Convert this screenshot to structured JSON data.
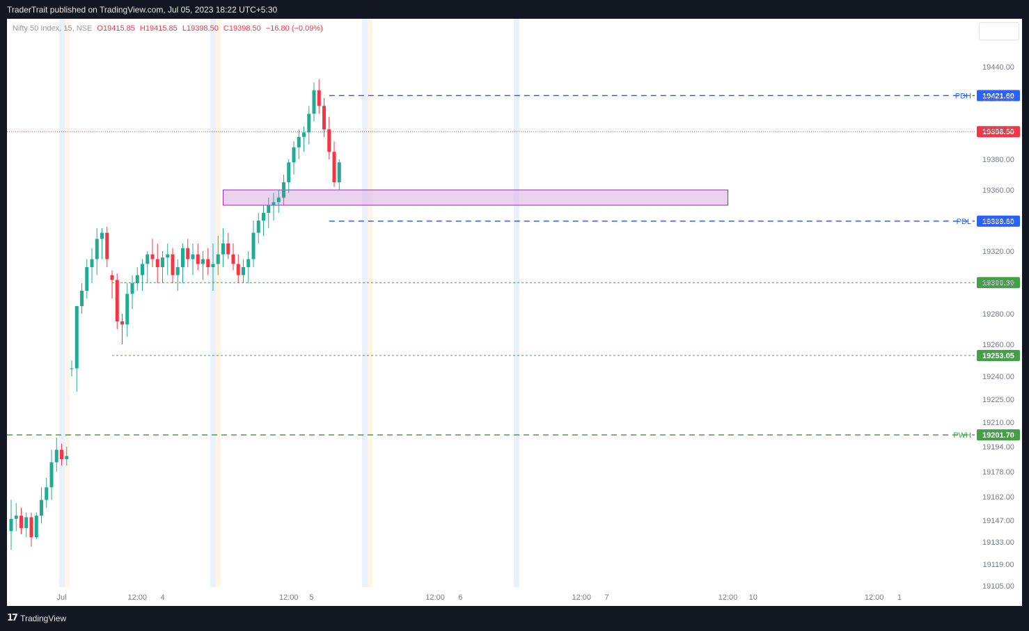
{
  "header": {
    "published": "TraderTrait published on TradingView.com, Jul 05, 2023 18:22 UTC+5:30"
  },
  "legend": {
    "symbol": "Nifty 50 Index, 15, NSE",
    "open_label": "O",
    "open": "19415.85",
    "high_label": "H",
    "high": "19415.85",
    "low_label": "L",
    "low": "19398.50",
    "close_label": "C",
    "close": "19398.50",
    "change": "−16.80 (−0.09%)"
  },
  "footer": {
    "brand": "TradingView"
  },
  "colors": {
    "up": "#22ab94",
    "down": "#f23645",
    "pdh_pdl": "#2962ff",
    "levels": "#43a047",
    "zone_fill": "#e1bee7",
    "zone_border": "#9c27b0",
    "last_price": "#f23645"
  },
  "chart_data": {
    "type": "candlestick",
    "timeframe": "15",
    "y_axis_ticks": [
      "19440.00",
      "19420.00",
      "19400.00",
      "19380.00",
      "19360.00",
      "19340.00",
      "19320.00",
      "19300.00",
      "19280.00",
      "19260.00",
      "19240.00",
      "19225.00",
      "19210.00",
      "19194.00",
      "19178.00",
      "19162.00",
      "19147.00",
      "19133.00",
      "19119.00",
      "19105.00"
    ],
    "y_axis_scale": [
      19440,
      19420,
      19400,
      19380,
      19360,
      19340,
      19320,
      19300,
      19280,
      19260,
      19240,
      19225,
      19210,
      19194,
      19178,
      19162,
      19147,
      19133,
      19119,
      19105
    ],
    "x_axis_ticks": [
      "Jul",
      "12:00",
      "4",
      "12:00",
      "5",
      "12:00",
      "6",
      "12:00",
      "7",
      "12:00",
      "10",
      "12:00",
      "1"
    ],
    "x_axis_ticks_slot": [
      10,
      25,
      30,
      55,
      59.5,
      84,
      89,
      113,
      118,
      142,
      147,
      171,
      176
    ],
    "horizontal_levels": [
      {
        "label": "PDH",
        "value": 19421.6,
        "tag": "19421.60",
        "style": "dashed",
        "color": "#2962ff",
        "start_slot": 63
      },
      {
        "label": "PDL",
        "value": 19339.6,
        "tag": "19339.60",
        "style": "dashed",
        "color": "#2962ff",
        "start_slot": 63
      },
      {
        "label": "",
        "value": 19300.3,
        "tag": "19300.30",
        "style": "dotted",
        "color": "#43a047",
        "start_slot": 20
      },
      {
        "label": "",
        "value": 19253.05,
        "tag": "19253.05",
        "style": "dotted",
        "color": "#43a047",
        "start_slot": 20
      },
      {
        "label": "PWH",
        "value": 19201.7,
        "tag": "19201.70",
        "style": "dashed",
        "color": "#43a047",
        "start_slot": 0
      }
    ],
    "last_price": {
      "value": 19398.5,
      "tag": "19398.50"
    },
    "zone": {
      "from_slot": 42,
      "to_slot": 142,
      "low": 19350,
      "high": 19360
    },
    "candles": [
      [
        0,
        19140,
        19160,
        19128,
        19148
      ],
      [
        1,
        19148,
        19158,
        19140,
        19150
      ],
      [
        2,
        19150,
        19155,
        19138,
        19142
      ],
      [
        3,
        19142,
        19152,
        19136,
        19149
      ],
      [
        4,
        19149,
        19152,
        19130,
        19136
      ],
      [
        5,
        19136,
        19152,
        19135,
        19150
      ],
      [
        6,
        19150,
        19168,
        19145,
        19160
      ],
      [
        7,
        19160,
        19174,
        19155,
        19168
      ],
      [
        8,
        19168,
        19192,
        19160,
        19184
      ],
      [
        9,
        19184,
        19200,
        19178,
        19192
      ],
      [
        10,
        19192,
        19196,
        19182,
        19186
      ],
      [
        11,
        19186,
        19194,
        19182,
        19188
      ],
      [
        12,
        19245,
        19250,
        19240,
        19245
      ],
      [
        13,
        19245,
        19285,
        19230,
        19285
      ],
      [
        14,
        19285,
        19300,
        19280,
        19295
      ],
      [
        15,
        19295,
        19315,
        19290,
        19310
      ],
      [
        16,
        19310,
        19322,
        19300,
        19315
      ],
      [
        17,
        19315,
        19335,
        19305,
        19328
      ],
      [
        18,
        19328,
        19335,
        19315,
        19332
      ],
      [
        19,
        19332,
        19336,
        19310,
        19315
      ],
      [
        20,
        19305,
        19308,
        19290,
        19302
      ],
      [
        21,
        19302,
        19306,
        19270,
        19275
      ],
      [
        22,
        19275,
        19280,
        19260,
        19273
      ],
      [
        23,
        19273,
        19300,
        19265,
        19293
      ],
      [
        24,
        19293,
        19305,
        19283,
        19300
      ],
      [
        25,
        19300,
        19310,
        19295,
        19305
      ],
      [
        26,
        19305,
        19315,
        19295,
        19312
      ],
      [
        27,
        19312,
        19320,
        19300,
        19318
      ],
      [
        28,
        19318,
        19328,
        19310,
        19315
      ],
      [
        29,
        19315,
        19325,
        19300,
        19310
      ],
      [
        30,
        19310,
        19320,
        19300,
        19316
      ],
      [
        31,
        19316,
        19325,
        19305,
        19318
      ],
      [
        32,
        19318,
        19322,
        19300,
        19305
      ],
      [
        33,
        19305,
        19315,
        19295,
        19310
      ],
      [
        34,
        19310,
        19325,
        19300,
        19322
      ],
      [
        35,
        19322,
        19328,
        19310,
        19315
      ],
      [
        36,
        19315,
        19325,
        19305,
        19318
      ],
      [
        37,
        19318,
        19325,
        19308,
        19312
      ],
      [
        38,
        19312,
        19320,
        19302,
        19315
      ],
      [
        39,
        19315,
        19322,
        19305,
        19310
      ],
      [
        40,
        19310,
        19325,
        19295,
        19312
      ],
      [
        41,
        19312,
        19330,
        19305,
        19318
      ],
      [
        42,
        19318,
        19335,
        19310,
        19325
      ],
      [
        43,
        19325,
        19332,
        19315,
        19318
      ],
      [
        44,
        19318,
        19325,
        19308,
        19312
      ],
      [
        45,
        19312,
        19318,
        19300,
        19305
      ],
      [
        46,
        19305,
        19315,
        19300,
        19310
      ],
      [
        47,
        19310,
        19320,
        19300,
        19315
      ],
      [
        48,
        19315,
        19340,
        19310,
        19332
      ],
      [
        49,
        19332,
        19345,
        19325,
        19340
      ],
      [
        50,
        19340,
        19350,
        19330,
        19345
      ],
      [
        51,
        19345,
        19355,
        19335,
        19350
      ],
      [
        52,
        19350,
        19358,
        19340,
        19352
      ],
      [
        53,
        19352,
        19360,
        19345,
        19355
      ],
      [
        54,
        19355,
        19370,
        19350,
        19365
      ],
      [
        55,
        19365,
        19380,
        19358,
        19378
      ],
      [
        56,
        19378,
        19392,
        19370,
        19388
      ],
      [
        57,
        19388,
        19400,
        19380,
        19395
      ],
      [
        58,
        19395,
        19402,
        19385,
        19398
      ],
      [
        59,
        19398,
        19415,
        19390,
        19410
      ],
      [
        60,
        19410,
        19430,
        19405,
        19425
      ],
      [
        61,
        19425,
        19432,
        19410,
        19415
      ],
      [
        62,
        19415,
        19420,
        19395,
        19400
      ],
      [
        63,
        19400,
        19408,
        19380,
        19385
      ],
      [
        64,
        19385,
        19392,
        19362,
        19365
      ],
      [
        65,
        19365,
        19380,
        19360,
        19378
      ]
    ]
  }
}
